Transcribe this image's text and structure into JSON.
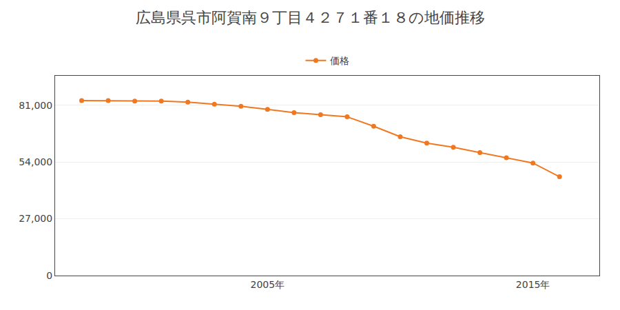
{
  "chart_data": {
    "type": "line",
    "title": "広島県呉市阿賀南９丁目４２７１番１８の地価推移",
    "x": [
      1998,
      1999,
      2000,
      2001,
      2002,
      2003,
      2004,
      2005,
      2006,
      2007,
      2008,
      2009,
      2010,
      2011,
      2012,
      2013,
      2014,
      2015,
      2016
    ],
    "series": [
      {
        "name": "価格",
        "color": "#f07820",
        "marker": "circle",
        "values": [
          83200,
          83200,
          83000,
          83000,
          82500,
          81500,
          80500,
          79000,
          77500,
          76500,
          75500,
          71000,
          66000,
          63000,
          61000,
          58500,
          56000,
          53500,
          47000
        ]
      }
    ],
    "xlim": [
      1997.0,
      2017.5
    ],
    "xticks": [
      {
        "value": 2005,
        "label": "2005年"
      },
      {
        "value": 2015,
        "label": "2015年"
      }
    ],
    "ylim": [
      0,
      95000
    ],
    "yticks": [
      0,
      {
        "value": 27000,
        "label": "27,000"
      },
      {
        "value": 54000,
        "label": "54,000"
      },
      {
        "value": 81000,
        "label": "81,000"
      }
    ],
    "grid": true,
    "legend": "top"
  }
}
